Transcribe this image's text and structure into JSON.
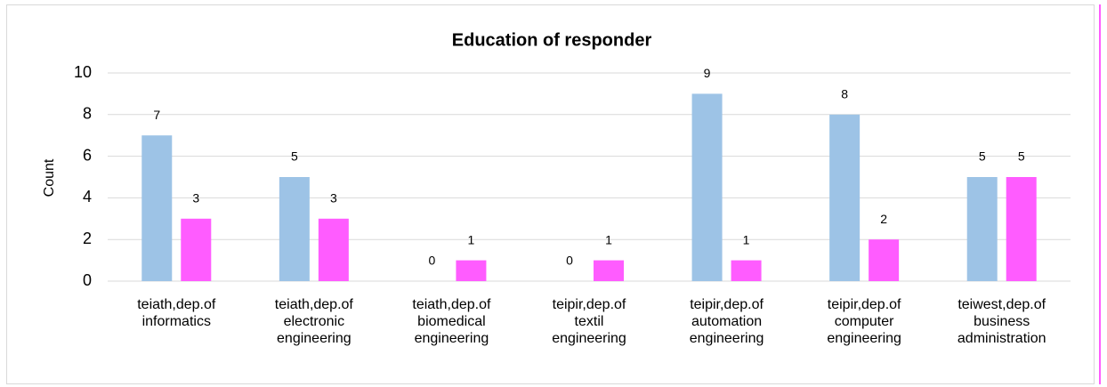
{
  "chart_data": {
    "type": "bar",
    "title": "Education of responder",
    "ylabel": "Count",
    "categories": [
      "teiath,dep.of\ninformatics",
      "teiath,dep.of\nelectronic\nengineering",
      "teiath,dep.of\nbiomedical\nengineering",
      "teipir,dep.of\ntextil\nengineering",
      "teipir,dep.of\nautomation\nengineering",
      "teipir,dep.of\ncomputer\nengineering",
      "teiwest,dep.of\nbusiness\nadministration"
    ],
    "series": [
      {
        "color": "#9dc3e6",
        "values": [
          7,
          5,
          0,
          0,
          9,
          8,
          5
        ]
      },
      {
        "color": "#ff5cff",
        "values": [
          3,
          3,
          1,
          1,
          1,
          2,
          5
        ]
      }
    ],
    "ylim": [
      0,
      10
    ],
    "yticks": [
      0,
      2,
      4,
      6,
      8,
      10
    ],
    "grid": true
  }
}
